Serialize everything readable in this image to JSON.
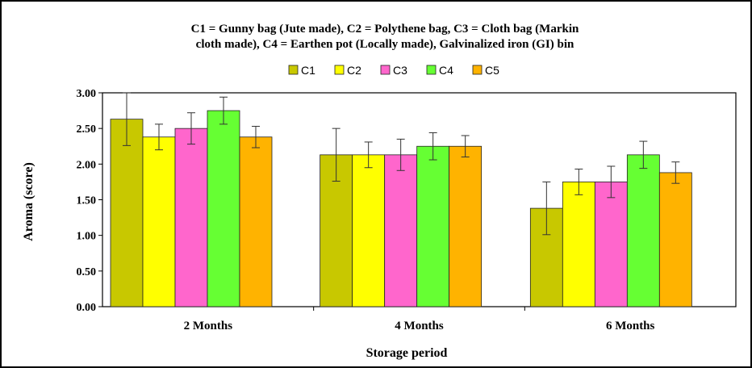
{
  "chart_data": {
    "type": "bar",
    "title_lines": [
      "C1 = Gunny bag (Jute made), C2 = Polythene bag, C3 = Cloth bag (Markin",
      "cloth made), C4 = Earthen pot (Locally made), Galvinalized iron (GI) bin"
    ],
    "xlabel": "Storage period",
    "ylabel": "Aroma (score)",
    "ylim": [
      0,
      3
    ],
    "yticks": [
      "0.00",
      "0.50",
      "1.00",
      "1.50",
      "2.00",
      "2.50",
      "3.00"
    ],
    "categories": [
      "2 Months",
      "4 Months",
      "6 Months"
    ],
    "legend_position": "top",
    "grid": false,
    "series": [
      {
        "name": "C1",
        "color": "#c8c800",
        "values": [
          2.63,
          2.13,
          1.38
        ],
        "errors": [
          0.37,
          0.37,
          0.37
        ]
      },
      {
        "name": "C2",
        "color": "#ffff00",
        "values": [
          2.38,
          2.13,
          1.75
        ],
        "errors": [
          0.18,
          0.18,
          0.18
        ]
      },
      {
        "name": "C3",
        "color": "#ff66cc",
        "values": [
          2.5,
          2.13,
          1.75
        ],
        "errors": [
          0.22,
          0.22,
          0.22
        ]
      },
      {
        "name": "C4",
        "color": "#66ff33",
        "values": [
          2.75,
          2.25,
          2.13
        ],
        "errors": [
          0.19,
          0.19,
          0.19
        ]
      },
      {
        "name": "C5",
        "color": "#ffb300",
        "values": [
          2.38,
          2.25,
          1.88
        ],
        "errors": [
          0.15,
          0.15,
          0.15
        ]
      }
    ]
  }
}
